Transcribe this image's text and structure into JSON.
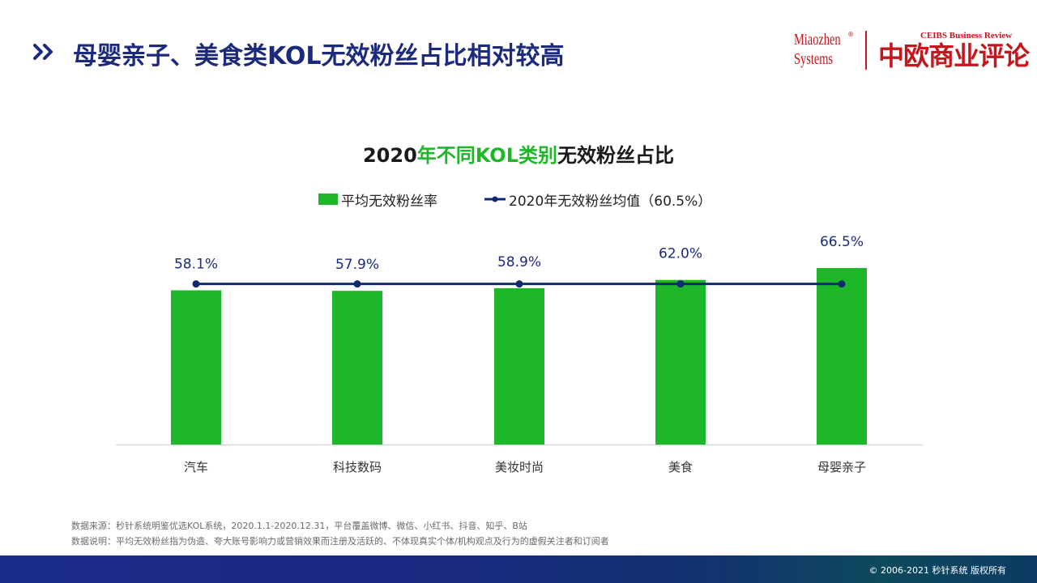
{
  "header": {
    "title": "母婴亲子、美食类KOL无效粉丝占比相对较高",
    "logo_mz_line1": "Miaozhen",
    "logo_mz_line2": "Systems",
    "logo_ceibs_en": "CEIBS Business Review",
    "logo_ceibs_zh": "中欧商业评论"
  },
  "chart_data": {
    "type": "bar",
    "title_part1": "2020",
    "title_part2": "年不同KOL类别",
    "title_part3": "无效粉丝占比",
    "categories": [
      "汽车",
      "科技数码",
      "美妆时尚",
      "美食",
      "母婴亲子"
    ],
    "series": [
      {
        "name": "平均无效粉丝率",
        "type": "bar",
        "values": [
          58.1,
          57.9,
          58.9,
          62.0,
          66.5
        ],
        "labels": [
          "58.1%",
          "57.9%",
          "58.9%",
          "62.0%",
          "66.5%"
        ],
        "color": "#1fb72a"
      },
      {
        "name": "2020年无效粉丝均值（60.5%）",
        "type": "line",
        "values": [
          60.5,
          60.5,
          60.5,
          60.5,
          60.5
        ],
        "color": "#102a6e"
      }
    ],
    "grid": false,
    "legend_position": "top-center"
  },
  "notes": {
    "source": "数据来源：秒针系统明鉴优选KOL系统，2020.1.1-2020.12.31，平台覆盖微博、微信、小红书、抖音、知乎、B站",
    "definition": "数据说明：平均无效粉丝指为伪造、夸大账号影响力或营销效果而注册及活跃的、不体现真实个体/机构观点及行为的虚假关注者和订阅者"
  },
  "footer": {
    "copyright": "© 2006-2021 秒针系统 版权所有"
  },
  "colors": {
    "title_blue": "#1c2a7d",
    "accent_green": "#1fb72a",
    "line_navy": "#102a6e",
    "brand_red": "#c4161c"
  }
}
